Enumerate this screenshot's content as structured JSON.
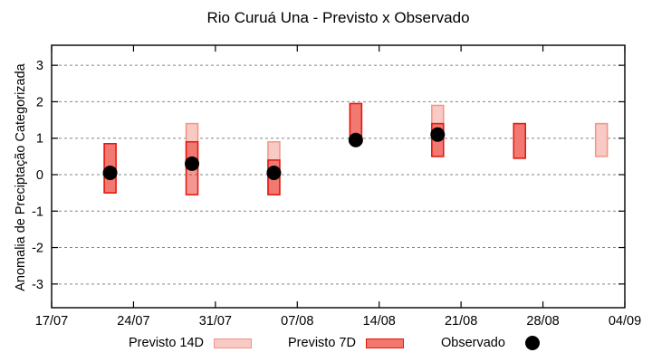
{
  "chart_data": {
    "type": "candlestick-range",
    "title": "Rio Curuá Una - Previsto x Observado",
    "ylabel": "Anomalia de Preciptação Categorizada",
    "xlabel": "",
    "x_tick_labels": [
      "17/07",
      "24/07",
      "31/07",
      "07/08",
      "14/08",
      "21/08",
      "28/08",
      "04/09"
    ],
    "x_tick_days": [
      0,
      7,
      14,
      21,
      28,
      35,
      42,
      49
    ],
    "y_ticks": [
      3,
      2,
      1,
      0,
      -1,
      -2,
      -3
    ],
    "ylim": [
      -3.65,
      3.55
    ],
    "xlim_days": [
      0,
      49
    ],
    "grid": "horizontal-dashed",
    "legend_position": "bottom",
    "legend": [
      {
        "label": "Previsto 14D",
        "marker": "box-light"
      },
      {
        "label": "Previsto 7D",
        "marker": "box-dark"
      },
      {
        "label": "Observado",
        "marker": "dot"
      }
    ],
    "groups": [
      {
        "date": "22/07",
        "day": 5,
        "previsto_14d": [
          -0.5,
          0.85
        ],
        "previsto_7d": [
          -0.5,
          0.85
        ],
        "observado": 0.05
      },
      {
        "date": "29/07",
        "day": 12,
        "previsto_14d": [
          0.15,
          1.4
        ],
        "previsto_7d": [
          -0.55,
          0.9
        ],
        "observado": 0.3
      },
      {
        "date": "05/08",
        "day": 19,
        "previsto_14d": [
          -0.55,
          0.9
        ],
        "previsto_7d": [
          -0.55,
          0.4
        ],
        "observado": 0.05
      },
      {
        "date": "12/08",
        "day": 26,
        "previsto_14d": [
          1.0,
          1.95
        ],
        "previsto_7d": [
          1.0,
          1.95
        ],
        "observado": 0.95
      },
      {
        "date": "19/08",
        "day": 33,
        "previsto_14d": [
          0.5,
          1.9
        ],
        "previsto_7d": [
          0.5,
          1.4
        ],
        "observado": 1.1
      },
      {
        "date": "26/08",
        "day": 40,
        "previsto_14d": [
          0.45,
          1.4
        ],
        "previsto_7d": [
          0.45,
          1.4
        ],
        "observado": null
      },
      {
        "date": "02/09",
        "day": 47,
        "previsto_14d": [
          0.5,
          1.4
        ],
        "previsto_7d": null,
        "observado": null
      }
    ],
    "colors": {
      "previsto_14d_fill": "#f9c9c3",
      "previsto_14d_border": "#f29488",
      "previsto_7d_fill": "rgba(231,25,16,0.45)",
      "previsto_7d_border": "#e3170c",
      "observado": "#000000",
      "grid": "#858585",
      "axis": "#000000",
      "background": "#ffffff"
    }
  }
}
